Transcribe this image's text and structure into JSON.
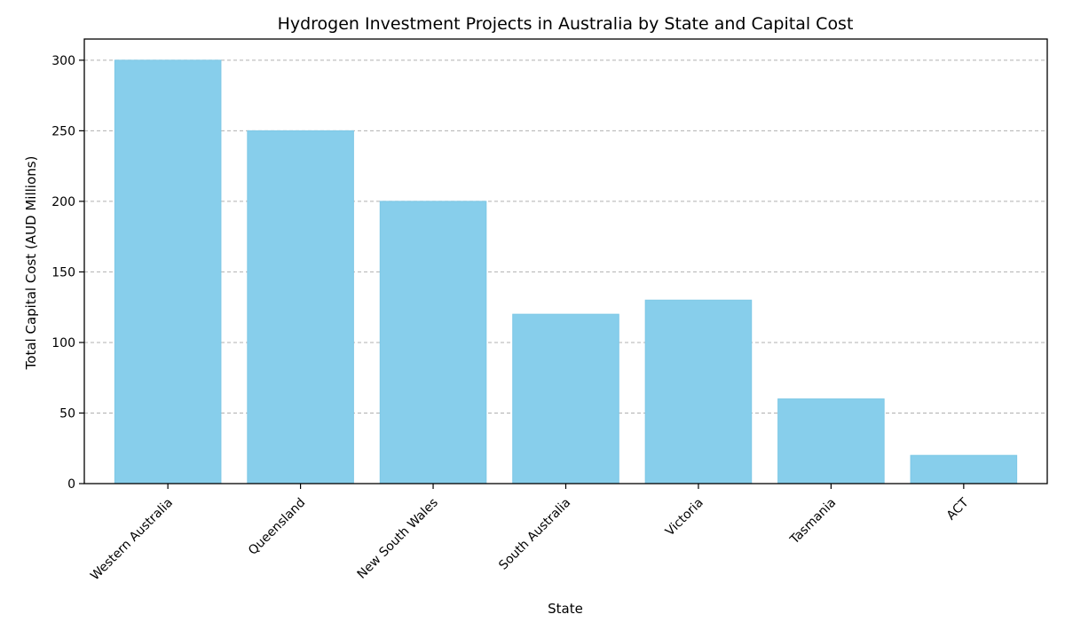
{
  "chart_data": {
    "type": "bar",
    "title": "Hydrogen Investment Projects in Australia by State and Capital Cost",
    "xlabel": "State",
    "ylabel": "Total Capital Cost (AUD Millions)",
    "categories": [
      "Western Australia",
      "Queensland",
      "New South Wales",
      "South Australia",
      "Victoria",
      "Tasmania",
      "ACT"
    ],
    "values": [
      300,
      250,
      200,
      120,
      130,
      60,
      20
    ],
    "ylim": [
      0,
      315
    ],
    "yticks": [
      0,
      50,
      100,
      150,
      200,
      250,
      300
    ],
    "grid": "y-dashed",
    "legend": "none",
    "bar_color": "#87ceeb",
    "bar_edge_color": "#7ec8e6"
  }
}
